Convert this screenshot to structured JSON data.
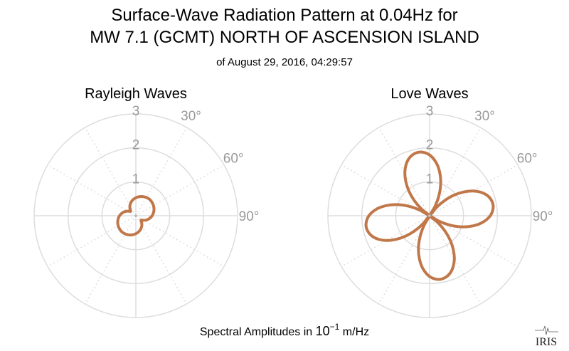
{
  "chart_data": {
    "type": "polar-line",
    "title_line1": "Surface-Wave Radiation Pattern at 0.04Hz for",
    "title_line2": "MW 7.1 (GCMT) NORTH OF ASCENSION ISLAND",
    "subtitle": "of August 29, 2016, 04:29:57",
    "xlabel_prefix": "Spectral Amplitudes in ",
    "xlabel_power": "10",
    "xlabel_exp": "−1",
    "xlabel_unit": " m/Hz",
    "radial_ticks": [
      "1",
      "2",
      "3"
    ],
    "radial_range": [
      0,
      3
    ],
    "angle_ticks": [
      "30°",
      "60°",
      "90°"
    ],
    "line_color": "#c0784a",
    "logo_text": "IRIS",
    "panels": [
      {
        "title": "Rayleigh Waves",
        "azimuth_step_deg": 10,
        "amplitudes": [
          0.53,
          0.57,
          0.6,
          0.62,
          0.63,
          0.62,
          0.6,
          0.57,
          0.53,
          0.48,
          0.42,
          0.35,
          0.27,
          0.2,
          0.27,
          0.35,
          0.42,
          0.48,
          0.53,
          0.57,
          0.6,
          0.62,
          0.63,
          0.62,
          0.6,
          0.57,
          0.53,
          0.48,
          0.42,
          0.35,
          0.27,
          0.2,
          0.27,
          0.35,
          0.42,
          0.48
        ]
      },
      {
        "title": "Love Waves",
        "azimuth_step_deg": 5,
        "amplitudes": [
          1.79,
          1.65,
          1.46,
          1.22,
          0.95,
          0.65,
          0.33,
          0,
          0.33,
          0.65,
          0.95,
          1.22,
          1.46,
          1.65,
          1.79,
          1.87,
          1.9,
          1.87,
          1.79,
          1.65,
          1.46,
          1.22,
          0.95,
          0.65,
          0.33,
          0,
          0.33,
          0.65,
          0.95,
          1.22,
          1.46,
          1.65,
          1.79,
          1.87,
          1.9,
          1.87,
          1.79,
          1.65,
          1.46,
          1.22,
          0.95,
          0.65,
          0.33,
          0,
          0.33,
          0.65,
          0.95,
          1.22,
          1.46,
          1.65,
          1.79,
          1.87,
          1.9,
          1.87,
          1.79,
          1.65,
          1.46,
          1.22,
          0.95,
          0.65,
          0.33,
          0,
          0.33,
          0.65,
          0.95,
          1.22,
          1.46,
          1.65,
          1.79,
          1.87,
          1.9,
          1.87
        ]
      }
    ]
  }
}
